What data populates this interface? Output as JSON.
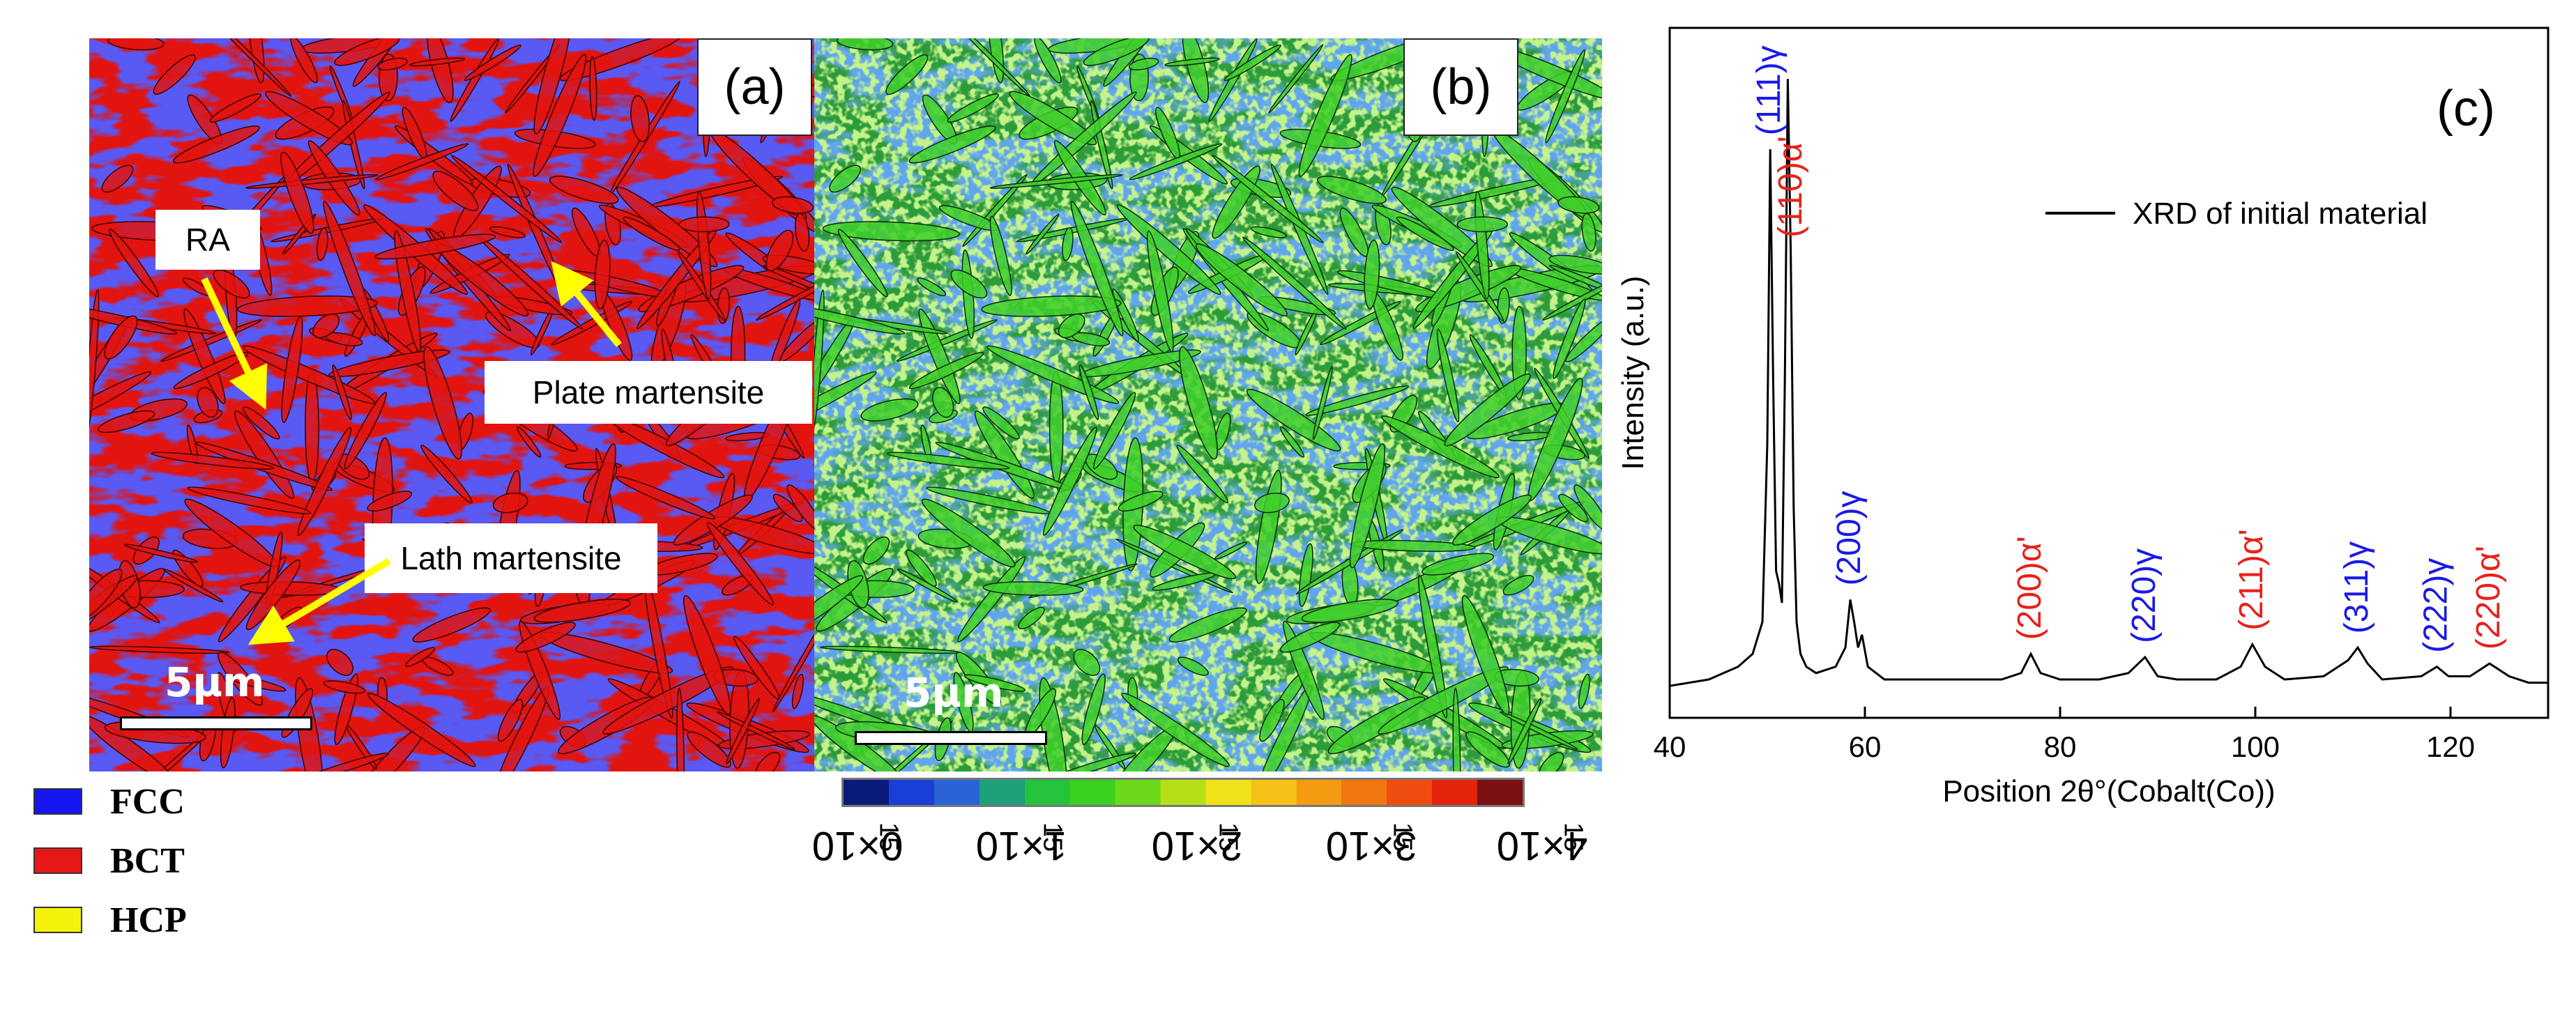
{
  "panel_a": {
    "letter": "(a)",
    "callouts": {
      "ra": "RA",
      "plate": "Plate martensite",
      "lath": "Lath martensite"
    },
    "scale": "5µm",
    "phase_colors": {
      "fcc": "#1a1ae6",
      "bct": "#e2140f"
    }
  },
  "panel_b": {
    "letter": "(b)",
    "scale": "5µm"
  },
  "legend": [
    {
      "label": "FCC",
      "color": "#1515f0"
    },
    {
      "label": "BCT",
      "color": "#e81818"
    },
    {
      "label": "HCP",
      "color": "#f4f20a"
    }
  ],
  "colorbar": {
    "colors": [
      "#0a1a7a",
      "#1a3fd6",
      "#2a63d8",
      "#1ea07a",
      "#23c43c",
      "#3ad11e",
      "#6bd919",
      "#b5e018",
      "#f0e21a",
      "#f7c116",
      "#f59b12",
      "#f2760f",
      "#ee4d0d",
      "#e3240b",
      "#7a1010"
    ],
    "ticks": [
      {
        "base": "0×10",
        "exp": "15"
      },
      {
        "base": "1×10",
        "exp": "15"
      },
      {
        "base": "2×10",
        "exp": "15"
      },
      {
        "base": "3×10",
        "exp": "15"
      },
      {
        "base": "4×10",
        "exp": "15"
      }
    ]
  },
  "chart_data": {
    "type": "line",
    "panel_label": "(c)",
    "xlabel": "Position 2θ°(Cobalt(Co))",
    "ylabel": "Intensity (a.u.)",
    "xlim": [
      40,
      130
    ],
    "xticks": [
      40,
      60,
      80,
      100,
      120
    ],
    "legend": "XRD of initial material",
    "series": [
      {
        "name": "XRD of initial material",
        "x": [
          40,
          44,
          47,
          48.5,
          49.5,
          50.0,
          50.3,
          50.6,
          50.9,
          51.2,
          51.5,
          51.8,
          52.1,
          52.4,
          52.7,
          53.0,
          53.4,
          54,
          55,
          57,
          58.0,
          58.5,
          58.9,
          59.3,
          59.7,
          60.3,
          62,
          66,
          70,
          74,
          76,
          77,
          78,
          80,
          84,
          87,
          88.7,
          90,
          92,
          96,
          98.5,
          99.7,
          101,
          103,
          107,
          109.5,
          110.5,
          111.5,
          113,
          117,
          118.6,
          119.8,
          122,
          124.0,
          126,
          128,
          130
        ],
        "y": [
          0.02,
          0.03,
          0.05,
          0.07,
          0.12,
          0.4,
          0.86,
          0.5,
          0.2,
          0.18,
          0.15,
          0.5,
          0.97,
          0.7,
          0.3,
          0.12,
          0.07,
          0.05,
          0.04,
          0.05,
          0.08,
          0.155,
          0.12,
          0.08,
          0.1,
          0.05,
          0.03,
          0.03,
          0.03,
          0.03,
          0.04,
          0.07,
          0.04,
          0.03,
          0.03,
          0.04,
          0.065,
          0.035,
          0.03,
          0.03,
          0.05,
          0.085,
          0.05,
          0.03,
          0.035,
          0.06,
          0.08,
          0.055,
          0.03,
          0.035,
          0.05,
          0.035,
          0.035,
          0.055,
          0.035,
          0.025,
          0.025
        ]
      }
    ],
    "peaks": [
      {
        "label": "(111)γ",
        "x": 50.3,
        "color": "#1a1ae6"
      },
      {
        "label": "(110)α'",
        "x": 52.5,
        "color": "#e8201a"
      },
      {
        "label": "(200)γ",
        "x": 58.5,
        "color": "#1a1ae6"
      },
      {
        "label": "(200)α'",
        "x": 77,
        "color": "#e8201a"
      },
      {
        "label": "(220)γ",
        "x": 88.7,
        "color": "#1a1ae6"
      },
      {
        "label": "(211)α'",
        "x": 99.7,
        "color": "#e8201a"
      },
      {
        "label": "(311)γ",
        "x": 110.5,
        "color": "#1a1ae6"
      },
      {
        "label": "(222)γ",
        "x": 118.6,
        "color": "#1a1ae6"
      },
      {
        "label": "(220)α'",
        "x": 124.0,
        "color": "#e8201a"
      }
    ]
  }
}
